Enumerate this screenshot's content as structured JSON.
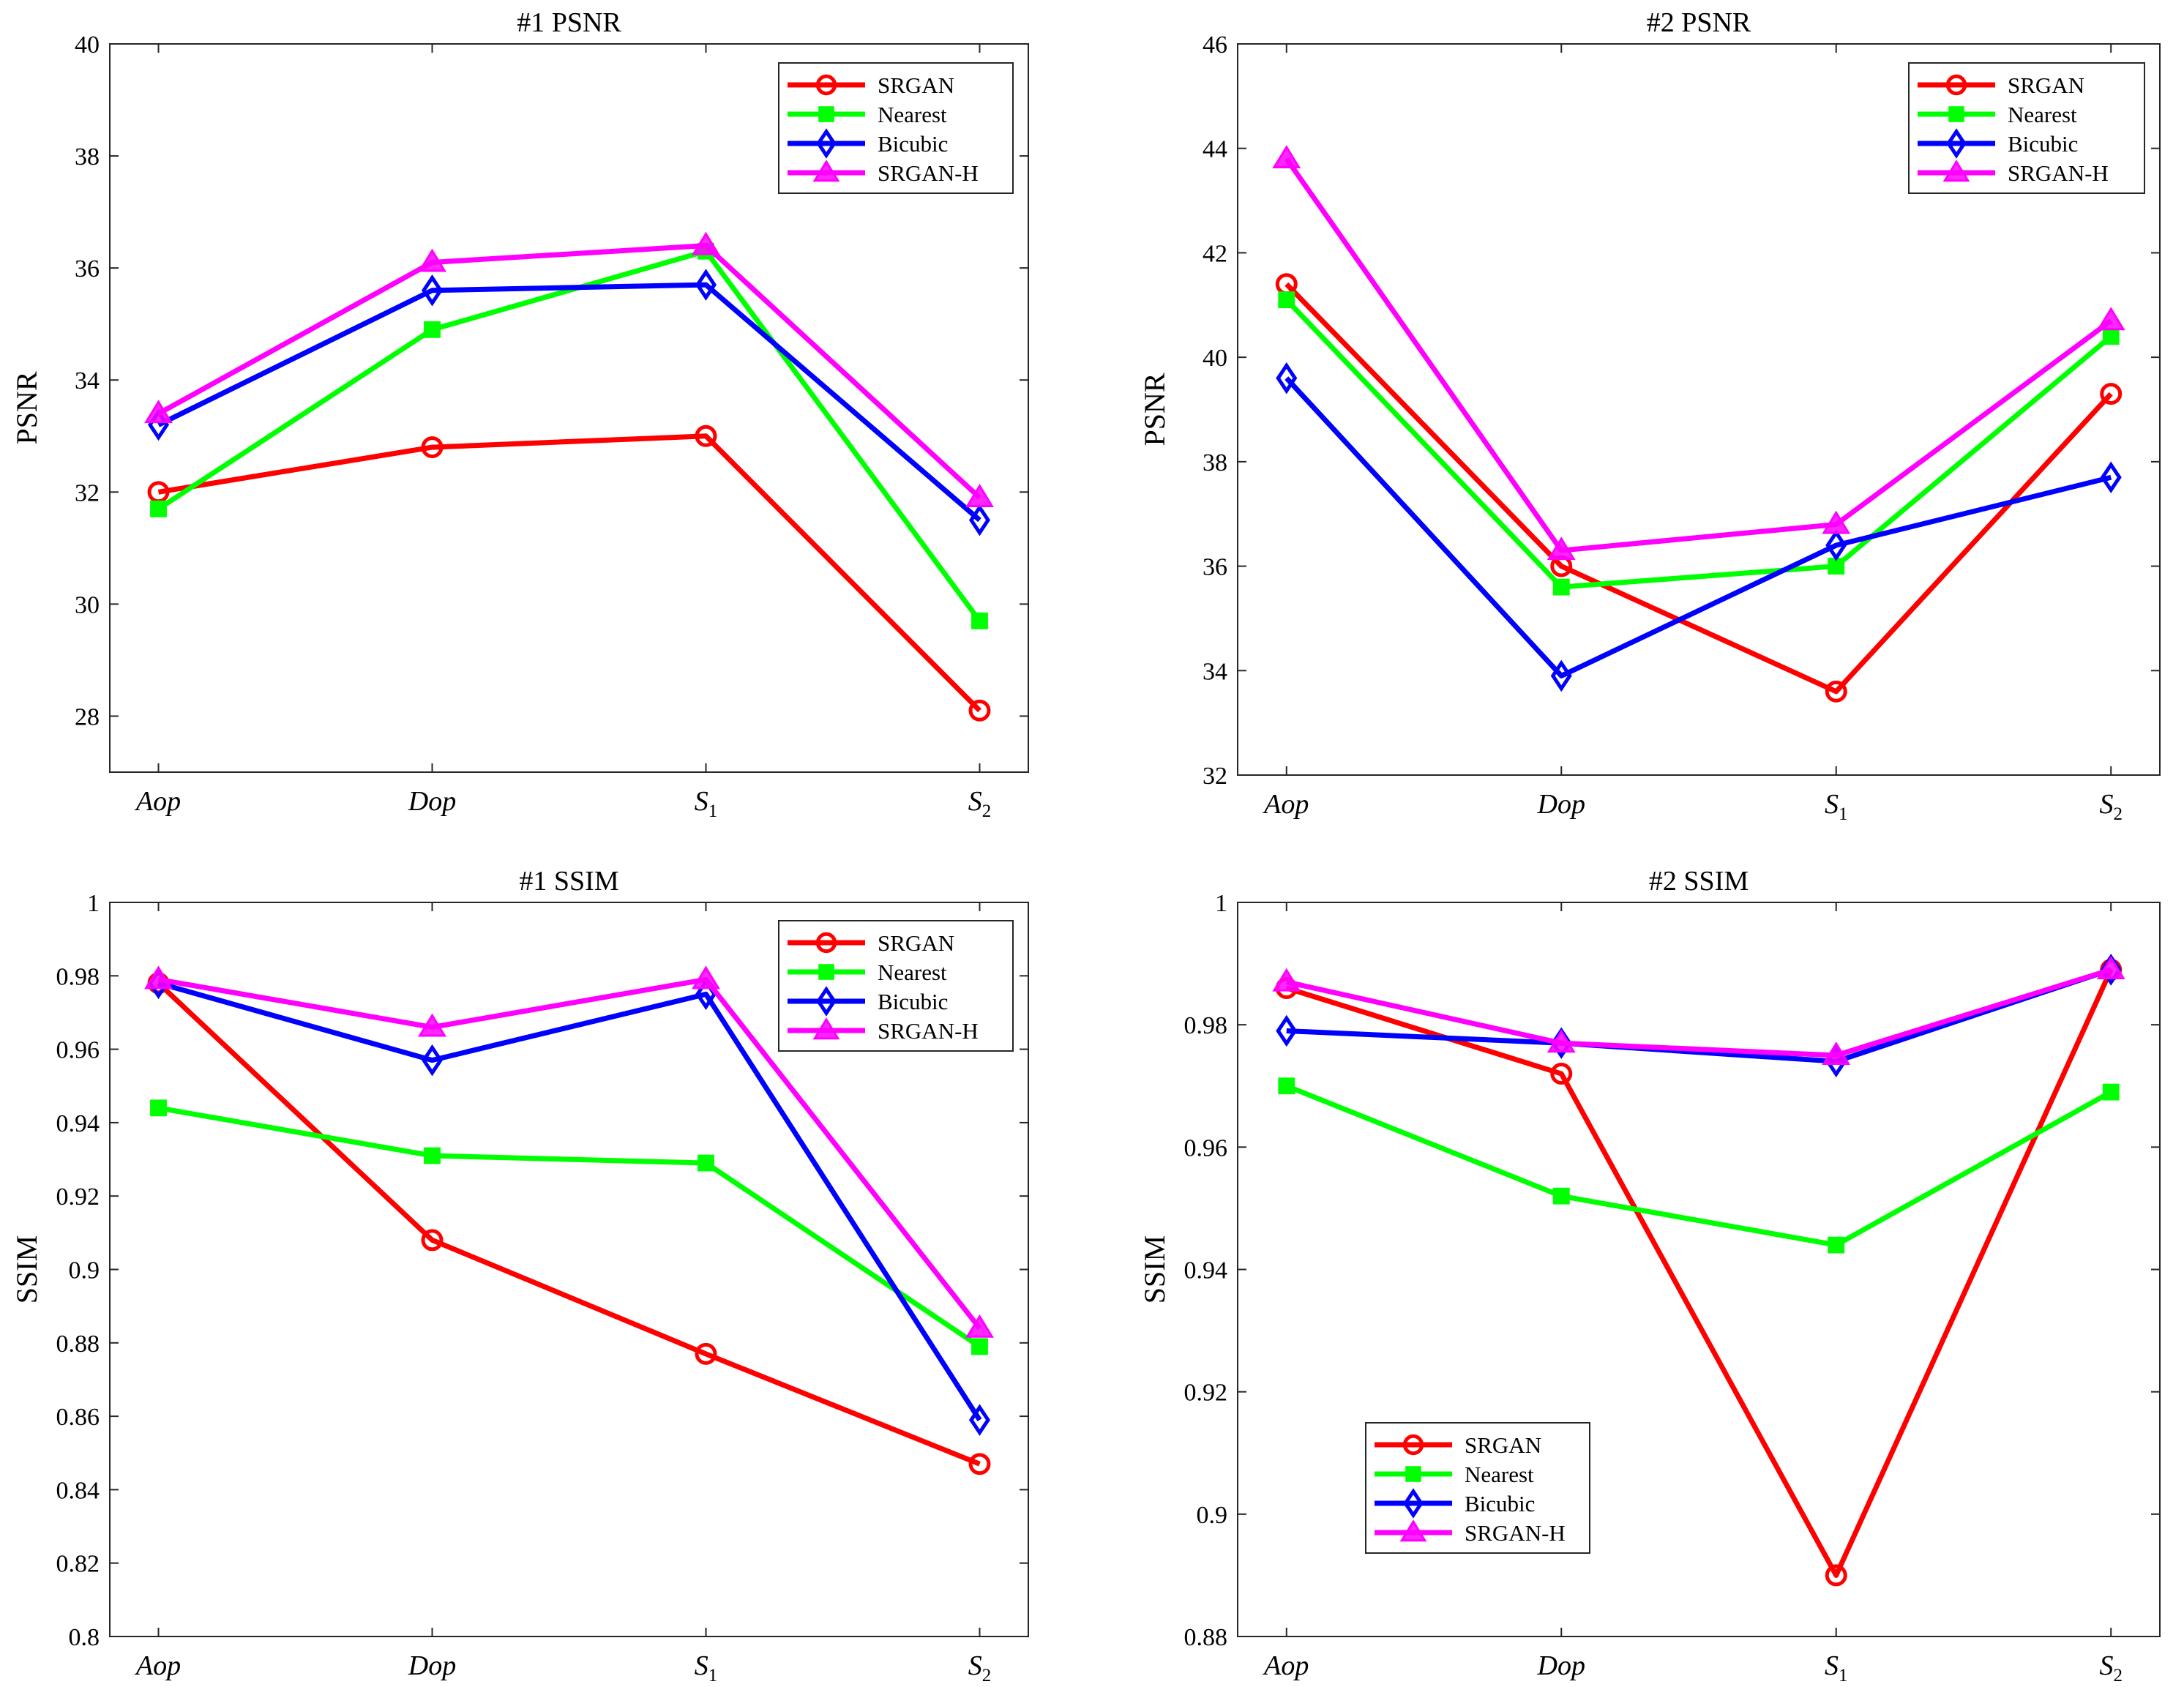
{
  "chart_data": [
    {
      "type": "line",
      "title": "#1 PSNR",
      "xlabel": "",
      "ylabel": "PSNR",
      "categories": [
        {
          "main": "Aop",
          "sub": ""
        },
        {
          "main": "Dop",
          "sub": ""
        },
        {
          "main": "S",
          "sub": "1"
        },
        {
          "main": "S",
          "sub": "2"
        }
      ],
      "ylim": [
        27,
        40
      ],
      "yticks": [
        {
          "value": 28,
          "label": "28"
        },
        {
          "value": 30,
          "label": "30"
        },
        {
          "value": 32,
          "label": "32"
        },
        {
          "value": 34,
          "label": "34"
        },
        {
          "value": 36,
          "label": "36"
        },
        {
          "value": 38,
          "label": "38"
        },
        {
          "value": 40,
          "label": "40"
        }
      ],
      "legend_position": "top-right",
      "series": [
        {
          "name": "SRGAN",
          "color": "#ff0000",
          "marker": "circle",
          "values": [
            32.0,
            32.8,
            33.0,
            28.1
          ]
        },
        {
          "name": "Nearest",
          "color": "#00ff00",
          "marker": "square",
          "values": [
            31.7,
            34.9,
            36.3,
            29.7
          ]
        },
        {
          "name": "Bicubic",
          "color": "#0000ff",
          "marker": "diamond",
          "values": [
            33.2,
            35.6,
            35.7,
            31.5
          ]
        },
        {
          "name": "SRGAN-H",
          "color": "#ff00ff",
          "marker": "triangle",
          "values": [
            33.4,
            36.1,
            36.4,
            31.9
          ]
        }
      ]
    },
    {
      "type": "line",
      "title": "#2 PSNR",
      "xlabel": "",
      "ylabel": "PSNR",
      "categories": [
        {
          "main": "Aop",
          "sub": ""
        },
        {
          "main": "Dop",
          "sub": ""
        },
        {
          "main": "S",
          "sub": "1"
        },
        {
          "main": "S",
          "sub": "2"
        }
      ],
      "ylim": [
        32,
        46
      ],
      "yticks": [
        {
          "value": 32,
          "label": "32"
        },
        {
          "value": 34,
          "label": "34"
        },
        {
          "value": 36,
          "label": "36"
        },
        {
          "value": 38,
          "label": "38"
        },
        {
          "value": 40,
          "label": "40"
        },
        {
          "value": 42,
          "label": "42"
        },
        {
          "value": 44,
          "label": "44"
        },
        {
          "value": 46,
          "label": "46"
        }
      ],
      "legend_position": "top-right",
      "series": [
        {
          "name": "SRGAN",
          "color": "#ff0000",
          "marker": "circle",
          "values": [
            41.4,
            36.0,
            33.6,
            39.3
          ]
        },
        {
          "name": "Nearest",
          "color": "#00ff00",
          "marker": "square",
          "values": [
            41.1,
            35.6,
            36.0,
            40.4
          ]
        },
        {
          "name": "Bicubic",
          "color": "#0000ff",
          "marker": "diamond",
          "values": [
            39.6,
            33.9,
            36.4,
            37.7
          ]
        },
        {
          "name": "SRGAN-H",
          "color": "#ff00ff",
          "marker": "triangle",
          "values": [
            43.8,
            36.3,
            36.8,
            40.7
          ]
        }
      ]
    },
    {
      "type": "line",
      "title": "#1 SSIM",
      "xlabel": "",
      "ylabel": "SSIM",
      "categories": [
        {
          "main": "Aop",
          "sub": ""
        },
        {
          "main": "Dop",
          "sub": ""
        },
        {
          "main": "S",
          "sub": "1"
        },
        {
          "main": "S",
          "sub": "2"
        }
      ],
      "ylim": [
        0.8,
        1.0
      ],
      "yticks": [
        {
          "value": 0.8,
          "label": "0.8"
        },
        {
          "value": 0.82,
          "label": "0.82"
        },
        {
          "value": 0.84,
          "label": "0.84"
        },
        {
          "value": 0.86,
          "label": "0.86"
        },
        {
          "value": 0.88,
          "label": "0.88"
        },
        {
          "value": 0.9,
          "label": "0.9"
        },
        {
          "value": 0.92,
          "label": "0.92"
        },
        {
          "value": 0.94,
          "label": "0.94"
        },
        {
          "value": 0.96,
          "label": "0.96"
        },
        {
          "value": 0.98,
          "label": "0.98"
        },
        {
          "value": 1.0,
          "label": "1"
        }
      ],
      "legend_position": "top-right",
      "series": [
        {
          "name": "SRGAN",
          "color": "#ff0000",
          "marker": "circle",
          "values": [
            0.978,
            0.908,
            0.877,
            0.847
          ]
        },
        {
          "name": "Nearest",
          "color": "#00ff00",
          "marker": "square",
          "values": [
            0.944,
            0.931,
            0.929,
            0.879
          ]
        },
        {
          "name": "Bicubic",
          "color": "#0000ff",
          "marker": "diamond",
          "values": [
            0.978,
            0.957,
            0.975,
            0.859
          ]
        },
        {
          "name": "SRGAN-H",
          "color": "#ff00ff",
          "marker": "triangle",
          "values": [
            0.979,
            0.966,
            0.979,
            0.884
          ]
        }
      ]
    },
    {
      "type": "line",
      "title": "#2 SSIM",
      "xlabel": "",
      "ylabel": "SSIM",
      "categories": [
        {
          "main": "Aop",
          "sub": ""
        },
        {
          "main": "Dop",
          "sub": ""
        },
        {
          "main": "S",
          "sub": "1"
        },
        {
          "main": "S",
          "sub": "2"
        }
      ],
      "ylim": [
        0.88,
        1.0
      ],
      "yticks": [
        {
          "value": 0.88,
          "label": "0.88"
        },
        {
          "value": 0.9,
          "label": "0.9"
        },
        {
          "value": 0.92,
          "label": "0.92"
        },
        {
          "value": 0.94,
          "label": "0.94"
        },
        {
          "value": 0.96,
          "label": "0.96"
        },
        {
          "value": 0.98,
          "label": "0.98"
        },
        {
          "value": 1.0,
          "label": "1"
        }
      ],
      "legend_position": "bottom-left",
      "series": [
        {
          "name": "SRGAN",
          "color": "#ff0000",
          "marker": "circle",
          "values": [
            0.986,
            0.972,
            0.89,
            0.989
          ]
        },
        {
          "name": "Nearest",
          "color": "#00ff00",
          "marker": "square",
          "values": [
            0.97,
            0.952,
            0.944,
            0.969
          ]
        },
        {
          "name": "Bicubic",
          "color": "#0000ff",
          "marker": "diamond",
          "values": [
            0.979,
            0.977,
            0.974,
            0.989
          ]
        },
        {
          "name": "SRGAN-H",
          "color": "#ff00ff",
          "marker": "triangle",
          "values": [
            0.987,
            0.977,
            0.975,
            0.989
          ]
        }
      ]
    }
  ]
}
